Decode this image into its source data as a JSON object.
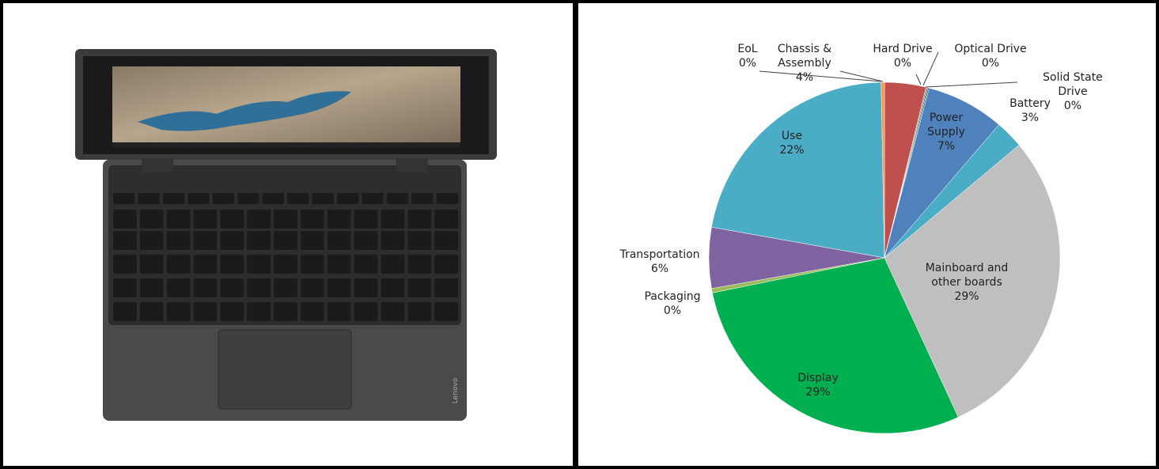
{
  "photo": {
    "brand": "Lenovo"
  },
  "chart_data": {
    "type": "pie",
    "categories": [
      "Chassis & Assembly",
      "Hard Drive",
      "Optical Drive",
      "Solid State Drive",
      "Power Supply",
      "Battery",
      "Mainboard and other boards",
      "Display",
      "Packaging",
      "Transportation",
      "Use",
      "EoL"
    ],
    "values": [
      3.8,
      0.1,
      0.1,
      0.1,
      7.2,
      2.6,
      29.2,
      28.7,
      0.4,
      5.6,
      21.9,
      0.3
    ],
    "value_labels": [
      "4%",
      "0%",
      "0%",
      "0%",
      "7%",
      "3%",
      "29%",
      "29%",
      "0%",
      "6%",
      "22%",
      "0%"
    ],
    "colors": [
      "#c0504d",
      "#7f7f7f",
      "#4f6228",
      "#1f497d",
      "#4f81bd",
      "#4bacc6",
      "#bfbfbf",
      "#00b050",
      "#9bbb59",
      "#8064a2",
      "#4bacc6",
      "#f79646"
    ]
  }
}
